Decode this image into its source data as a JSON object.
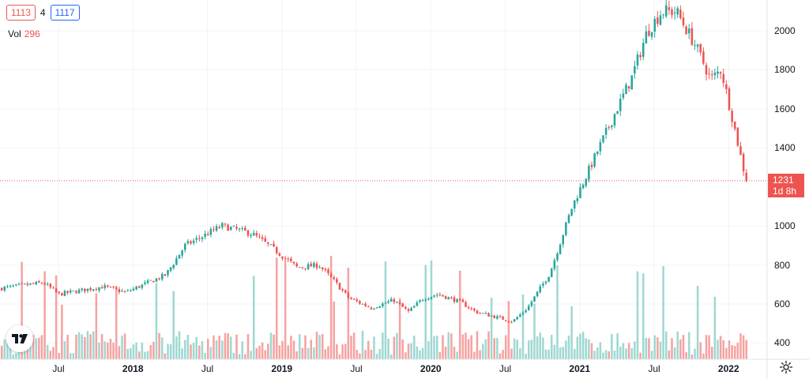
{
  "legend": {
    "open_badge": "1113",
    "interval": "4",
    "close_badge": "1117",
    "vol_label": "Vol",
    "vol_value": "296"
  },
  "price_tag": {
    "price": "1231",
    "countdown": "1d 8h"
  },
  "colors": {
    "up": "#26a69a",
    "down": "#ef5350",
    "up_vol": "#9fd8d1",
    "down_vol": "#f5a3a1",
    "grid": "#f0f3fa",
    "axis_text": "#131722"
  },
  "icons": {
    "logo": "tradingview-logo-icon",
    "settings": "gear-icon"
  },
  "chart_data": {
    "type": "candlestick",
    "price_axis": {
      "ticks": [
        400,
        600,
        800,
        1000,
        1400,
        1600,
        1800,
        2000
      ]
    },
    "time_axis": {
      "ticks": [
        {
          "label": "Jul",
          "t": 0.0,
          "bold": false
        },
        {
          "label": "2018",
          "t": 0.5,
          "bold": true
        },
        {
          "label": "Jul",
          "t": 1.0,
          "bold": false
        },
        {
          "label": "2019",
          "t": 1.5,
          "bold": true
        },
        {
          "label": "Jul",
          "t": 2.0,
          "bold": false
        },
        {
          "label": "2020",
          "t": 2.5,
          "bold": true
        },
        {
          "label": "Jul",
          "t": 3.0,
          "bold": false
        },
        {
          "label": "2021",
          "t": 3.5,
          "bold": true
        },
        {
          "label": "Jul",
          "t": 4.0,
          "bold": false
        },
        {
          "label": "2022",
          "t": 4.5,
          "bold": true
        }
      ]
    },
    "last_price": 1231,
    "keyframes": [
      [
        -0.4,
        680
      ],
      [
        -0.1,
        710
      ],
      [
        0.0,
        650
      ],
      [
        0.3,
        690
      ],
      [
        0.45,
        660
      ],
      [
        0.72,
        750
      ],
      [
        0.85,
        900
      ],
      [
        1.0,
        960
      ],
      [
        1.1,
        1000
      ],
      [
        1.3,
        960
      ],
      [
        1.45,
        880
      ],
      [
        1.6,
        790
      ],
      [
        1.75,
        800
      ],
      [
        1.85,
        720
      ],
      [
        1.95,
        630
      ],
      [
        2.1,
        580
      ],
      [
        2.25,
        620
      ],
      [
        2.35,
        560
      ],
      [
        2.45,
        630
      ],
      [
        2.55,
        650
      ],
      [
        2.7,
        610
      ],
      [
        2.8,
        560
      ],
      [
        2.95,
        530
      ],
      [
        3.05,
        510
      ],
      [
        3.15,
        580
      ],
      [
        3.3,
        760
      ],
      [
        3.45,
        1100
      ],
      [
        3.6,
        1350
      ],
      [
        3.75,
        1600
      ],
      [
        3.85,
        1760
      ],
      [
        3.95,
        1990
      ],
      [
        4.05,
        2100
      ],
      [
        4.15,
        2100
      ],
      [
        4.28,
        1920
      ],
      [
        4.38,
        1750
      ],
      [
        4.45,
        1800
      ],
      [
        4.52,
        1570
      ],
      [
        4.6,
        1290
      ],
      [
        4.63,
        1231
      ]
    ]
  }
}
